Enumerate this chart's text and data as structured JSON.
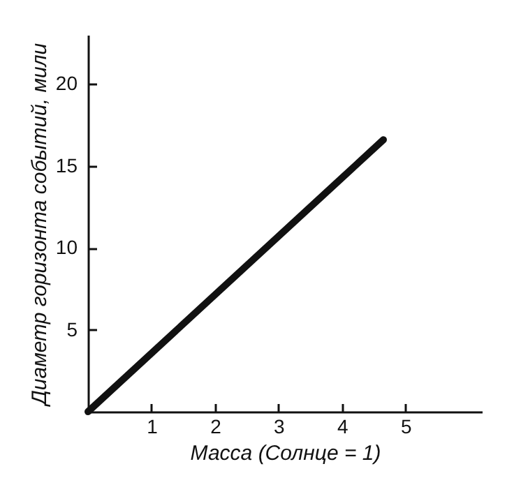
{
  "chart_data": {
    "type": "line",
    "xlabel": "Масса  (Солнце = 1)",
    "ylabel": "Диаметр горизонта событий, мили",
    "x": [
      0,
      4.65
    ],
    "series": [
      {
        "color": "#111111",
        "values": [
          0,
          16.6
        ]
      }
    ],
    "xlim": [
      0,
      6.2
    ],
    "xticks": [
      1,
      2,
      3,
      4,
      5
    ],
    "ylim": [
      0,
      23
    ],
    "yticks": [
      5,
      10,
      15,
      20
    ],
    "grid": false,
    "legend": false,
    "marker": "none",
    "line_style": "solid"
  }
}
